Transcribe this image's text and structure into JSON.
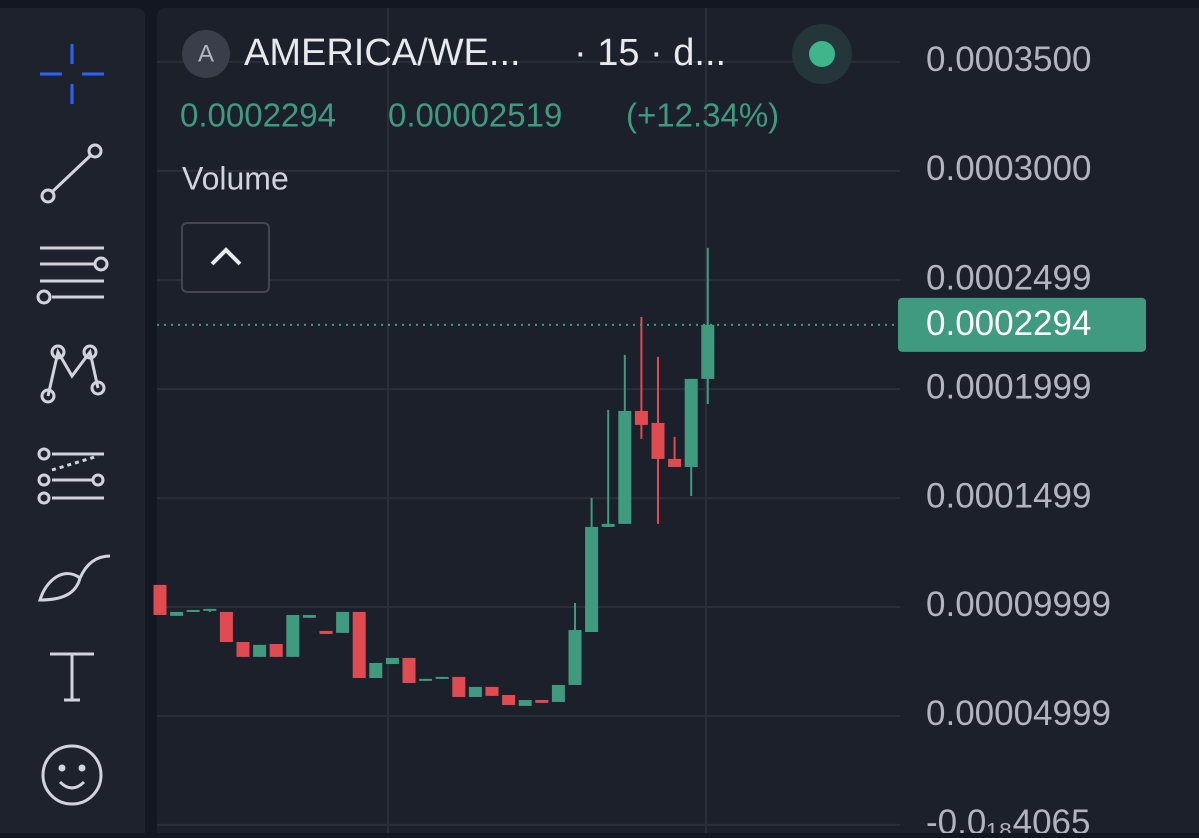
{
  "header": {
    "symbol_badge": "A",
    "symbol": "AMERICA/WE...",
    "interval": "· 15 · d...",
    "price": "0.0002294",
    "change": "0.00002519",
    "change_pct": "(+12.34%)",
    "indicator": "Volume"
  },
  "chart_data": {
    "type": "candlestick",
    "up_color": "#3f9a7f",
    "down_color": "#e04b52",
    "open": [
      0.0001101,
      9.59e-05,
      9.77e-05,
      9.86e-05,
      9.77e-05,
      8.39e-05,
      7.71e-05,
      8.3e-05,
      7.71e-05,
      9.5e-05,
      8.9e-05,
      8.81e-05,
      9.77e-05,
      6.74e-05,
      7.38e-05,
      7.66e-05,
      6.61e-05,
      6.7e-05,
      6.79e-05,
      5.87e-05,
      6.33e-05,
      5.96e-05,
      5.46e-05,
      5.73e-05,
      5.64e-05,
      6.42e-05,
      8.85e-05,
      0.0001367,
      0.0001381,
      0.0001899,
      0.0001844,
      0.0001679,
      0.0001642,
      0.0002046
    ],
    "high": [
      0.0001101,
      9.77e-05,
      9.86e-05,
      9.91e-05,
      9.77e-05,
      8.39e-05,
      8.26e-05,
      8.3e-05,
      9.63e-05,
      9.63e-05,
      8.9e-05,
      9.77e-05,
      9.77e-05,
      7.43e-05,
      7.66e-05,
      7.66e-05,
      6.7e-05,
      6.79e-05,
      6.79e-05,
      6.33e-05,
      6.33e-05,
      5.96e-05,
      5.73e-05,
      5.73e-05,
      6.42e-05,
      0.0001018,
      0.00015,
      0.0001904,
      0.0002156,
      0.000233,
      0.0002147,
      0.000178,
      0.0002046,
      0.0002647
    ],
    "low": [
      9.63e-05,
      9.59e-05,
      9.77e-05,
      9.77e-05,
      8.39e-05,
      7.71e-05,
      7.71e-05,
      7.71e-05,
      7.71e-05,
      9.5e-05,
      8.76e-05,
      8.81e-05,
      6.74e-05,
      6.74e-05,
      7.38e-05,
      6.51e-05,
      6.61e-05,
      6.7e-05,
      5.87e-05,
      5.87e-05,
      5.92e-05,
      5.5e-05,
      5.46e-05,
      5.6e-05,
      5.64e-05,
      6.42e-05,
      8.85e-05,
      0.0001367,
      0.0001381,
      0.0001771,
      0.0001381,
      0.0001642,
      0.0001509,
      0.0001931
    ],
    "close": [
      9.63e-05,
      9.77e-05,
      9.86e-05,
      9.91e-05,
      8.39e-05,
      7.71e-05,
      8.26e-05,
      7.71e-05,
      9.63e-05,
      9.63e-05,
      8.76e-05,
      9.77e-05,
      6.74e-05,
      7.43e-05,
      7.66e-05,
      6.51e-05,
      6.7e-05,
      6.79e-05,
      5.87e-05,
      6.33e-05,
      5.92e-05,
      5.5e-05,
      5.73e-05,
      5.6e-05,
      6.42e-05,
      8.94e-05,
      0.0001367,
      0.0001381,
      0.0001899,
      0.0001835,
      0.0001679,
      0.0001642,
      0.0002046,
      0.0002294
    ],
    "last_price": 0.0002294,
    "ylim": [
      -3.7e-06,
      0.0003784
    ],
    "yticks": [
      {
        "value": 0.00035,
        "label": "0.0003500"
      },
      {
        "value": 0.0003,
        "label": "0.0003000"
      },
      0.0002499,
      0.0001999,
      0.0001499,
      9.999e-05,
      4.999e-05,
      {
        "value": 0,
        "label": "-0.0₁₈4065"
      }
    ],
    "grid": true
  }
}
